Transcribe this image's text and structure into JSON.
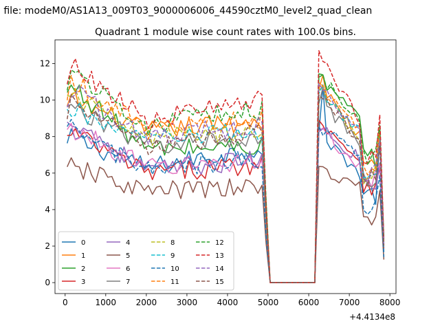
{
  "chart_data": {
    "type": "line",
    "suptitle": "n file: modeM0/AS1A13_009T03_9000006006_44590cztM0_level2_quad_clean",
    "title": "Quadrant 1 module wise count rates with 100.0s bins.",
    "xlabel": "",
    "ylabel": "",
    "x_offset_label": "+4.4134e8",
    "xlim": [
      -250,
      8150
    ],
    "ylim": [
      -0.6,
      13.3
    ],
    "xticks": [
      0,
      1000,
      2000,
      3000,
      4000,
      5000,
      6000,
      7000,
      8000
    ],
    "yticks": [
      0,
      2,
      4,
      6,
      8,
      10,
      12
    ],
    "legend_loc": "lower left",
    "legend_columns": 4,
    "x": [
      50,
      150,
      250,
      350,
      450,
      550,
      650,
      750,
      850,
      950,
      1050,
      1150,
      1250,
      1350,
      1450,
      1550,
      1650,
      1750,
      1850,
      1950,
      2050,
      2150,
      2250,
      2350,
      2450,
      2550,
      2650,
      2750,
      2850,
      2950,
      3050,
      3150,
      3250,
      3350,
      3450,
      3550,
      3650,
      3750,
      3850,
      3950,
      4050,
      4150,
      4250,
      4350,
      4450,
      4550,
      4650,
      4750,
      4850,
      4950,
      5050,
      5150,
      5250,
      5350,
      5450,
      5550,
      5650,
      5750,
      5850,
      5950,
      6050,
      6150,
      6250,
      6350,
      6450,
      6550,
      6650,
      6750,
      6850,
      6950,
      7050,
      7150,
      7250,
      7350,
      7450,
      7550,
      7650,
      7750,
      7850
    ],
    "series": [
      {
        "name": "0",
        "color": "#1f77b4",
        "start": 7.5,
        "mid": 6.3,
        "end": 7.4,
        "plateau": 7.8,
        "dip": 6.0,
        "recovery": 4.8,
        "peak": 10.6
      },
      {
        "name": "1",
        "color": "#ff7f0e",
        "start": 9.5,
        "mid": 8.3,
        "end": 8.9,
        "plateau": 10.3,
        "dip": 8.0,
        "recovery": 6.3,
        "peak": 11.4
      },
      {
        "name": "2",
        "color": "#2ca02c",
        "start": 10.2,
        "mid": 7.3,
        "end": 7.5,
        "plateau": 10.8,
        "dip": 9.0,
        "recovery": 6.8,
        "peak": 11.3
      },
      {
        "name": "3",
        "color": "#d62728",
        "start": 7.8,
        "mid": 6.0,
        "end": 6.5,
        "plateau": 8.5,
        "dip": 6.7,
        "recovery": 5.4,
        "peak": 8.7
      },
      {
        "name": "4",
        "color": "#9467bd",
        "start": 8.5,
        "mid": 6.1,
        "end": 6.8,
        "plateau": 8.2,
        "dip": 6.8,
        "recovery": 5.7,
        "peak": 8.4
      },
      {
        "name": "5",
        "color": "#8c564b",
        "start": 6.0,
        "mid": 5.0,
        "end": 5.2,
        "plateau": 6.0,
        "dip": 5.2,
        "recovery": 3.6,
        "peak": 6.5
      },
      {
        "name": "6",
        "color": "#e377c2",
        "start": 8.0,
        "mid": 6.3,
        "end": 6.7,
        "plateau": 8.0,
        "dip": 6.4,
        "recovery": 5.6,
        "peak": 8.5
      },
      {
        "name": "7",
        "color": "#7f7f7f",
        "start": 9.2,
        "mid": 7.5,
        "end": 8.0,
        "plateau": 9.6,
        "dip": 7.5,
        "recovery": 5.5,
        "peak": 10.6
      },
      {
        "name": "8",
        "color": "#bcbd22",
        "start": 9.8,
        "mid": 7.9,
        "end": 8.4,
        "plateau": 9.9,
        "dip": 8.0,
        "recovery": 5.9,
        "peak": 10.9
      },
      {
        "name": "9",
        "color": "#17becf",
        "start": 9.0,
        "mid": 7.8,
        "end": 8.3,
        "plateau": 10.0,
        "dip": 8.2,
        "recovery": 6.0,
        "peak": 10.8
      },
      {
        "name": "10",
        "color": "#1f77b4",
        "start": 8.0,
        "mid": 6.1,
        "end": 6.8,
        "plateau": 8.5,
        "dip": 6.8,
        "recovery": 4.0,
        "peak": 8.2
      },
      {
        "name": "11",
        "color": "#ff7f0e",
        "start": 10.5,
        "mid": 8.4,
        "end": 9.0,
        "plateau": 10.4,
        "dip": 8.6,
        "recovery": 6.2,
        "peak": 10.8
      },
      {
        "name": "12",
        "color": "#2ca02c",
        "start": 11.0,
        "mid": 8.6,
        "end": 9.5,
        "plateau": 10.9,
        "dip": 9.0,
        "recovery": 6.8,
        "peak": 11.3
      },
      {
        "name": "13",
        "color": "#d62728",
        "start": 11.3,
        "mid": 8.9,
        "end": 10.0,
        "plateau": 11.7,
        "dip": 9.0,
        "recovery": 7.0,
        "peak": 12.2
      },
      {
        "name": "14",
        "color": "#9467bd",
        "start": 10.0,
        "mid": 8.0,
        "end": 8.6,
        "plateau": 10.3,
        "dip": 8.2,
        "recovery": 6.0,
        "peak": 10.5
      },
      {
        "name": "15",
        "color": "#8c564b",
        "start": 9.3,
        "mid": 7.4,
        "end": 8.2,
        "plateau": 9.9,
        "dip": 7.8,
        "recovery": 5.8,
        "peak": 10.2
      }
    ]
  }
}
